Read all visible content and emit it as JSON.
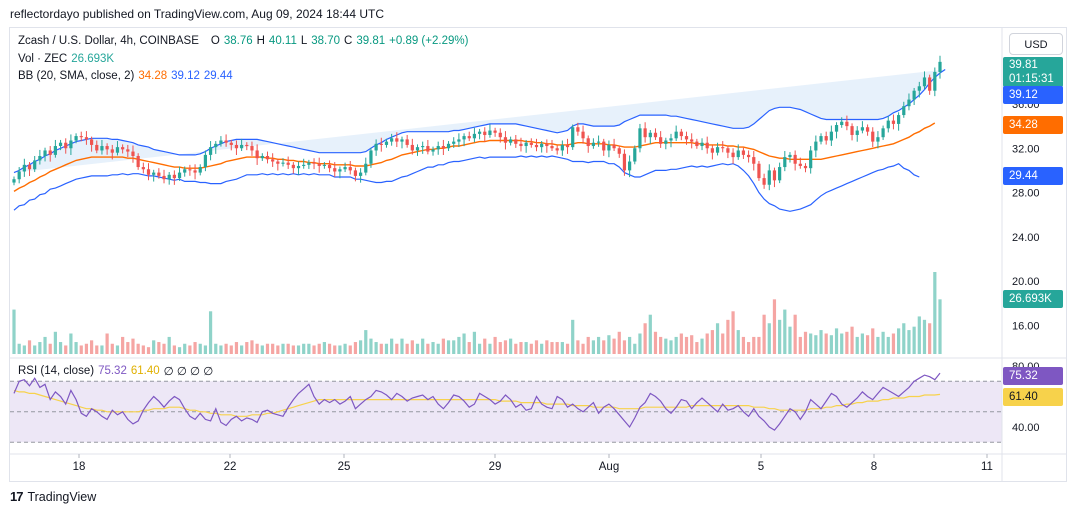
{
  "header": {
    "publisher_line": "reflectordayo published on TradingView.com, Aug 09, 2024 18:44 UTC"
  },
  "legend": {
    "symbol": "Zcash / U.S. Dollar, 4h, COINBASE",
    "o_label": "O",
    "o_value": "38.76",
    "h_label": "H",
    "h_value": "40.11",
    "l_label": "L",
    "l_value": "38.70",
    "c_label": "C",
    "c_value": "39.81",
    "change": "+0.89 (+2.29%)",
    "vol_label": "Vol · ZEC",
    "vol_value": "26.693K",
    "bb_label": "BB (20, SMA, close, 2)",
    "bb_basis": "34.28",
    "bb_upper": "39.12",
    "bb_lower": "29.44",
    "rsi_label": "RSI (14, close)",
    "rsi_value": "75.32",
    "rsi_ma": "61.40",
    "rsi_extra": "∅ ∅ ∅ ∅"
  },
  "currency_button": "USD",
  "price_tags": {
    "last_price": "39.81",
    "countdown": "01:15:31",
    "bb_upper": "39.12",
    "bb_basis": "34.28",
    "bb_lower": "29.44",
    "volume": "26.693K",
    "rsi": "75.32",
    "rsi_ma": "61.40"
  },
  "colors": {
    "up": "#26a69a",
    "down": "#ef5350",
    "vol_up": "#8fd3c9",
    "vol_down": "#f5a5a3",
    "bb_band": "#2962ff",
    "bb_basis": "#ff6d00",
    "bb_fill": "#e3effa",
    "rsi_line": "#7e57c2",
    "rsi_ma": "#f7d24b",
    "rsi_fill": "#ede7f6"
  },
  "footer": {
    "brand": "TradingView"
  },
  "chart_data": {
    "type": "candlestick",
    "price_axis": {
      "ticks": [
        "36.00",
        "32.00",
        "28.00",
        "24.00",
        "20.00",
        "16.00"
      ],
      "ticks_values": [
        36,
        32,
        28,
        24,
        20,
        16
      ]
    },
    "rsi_axis": {
      "ticks": [
        "80.00",
        "40.00"
      ],
      "ticks_values": [
        80,
        40
      ],
      "bands": [
        70,
        50,
        30
      ]
    },
    "x_axis": {
      "ticks": [
        "18",
        "22",
        "25",
        "29",
        "Aug",
        "5",
        "8",
        "11"
      ]
    },
    "close": [
      29.2,
      29.9,
      30.5,
      30.1,
      30.9,
      31.3,
      31.8,
      31.4,
      32.2,
      32.5,
      32.0,
      32.7,
      33.1,
      33.0,
      32.8,
      32.3,
      31.8,
      32.2,
      31.9,
      31.6,
      32.1,
      31.9,
      31.7,
      31.3,
      30.3,
      30.1,
      29.6,
      29.8,
      29.5,
      29.2,
      29.6,
      29.3,
      29.8,
      30.1,
      30.0,
      29.8,
      30.3,
      31.4,
      32.1,
      32.4,
      32.7,
      32.5,
      32.3,
      32.0,
      32.3,
      32.2,
      31.8,
      31.1,
      31.3,
      31.0,
      30.8,
      30.6,
      30.7,
      30.5,
      30.2,
      30.4,
      30.5,
      30.7,
      30.6,
      30.4,
      30.5,
      30.2,
      29.9,
      30.1,
      30.3,
      30.0,
      29.5,
      29.8,
      30.6,
      31.8,
      32.4,
      32.3,
      32.6,
      32.9,
      32.6,
      32.8,
      32.3,
      31.8,
      32.1,
      32.2,
      31.7,
      31.9,
      32.2,
      32.0,
      32.4,
      32.6,
      32.8,
      33.1,
      32.9,
      33.3,
      33.5,
      33.2,
      33.6,
      33.4,
      33.0,
      32.5,
      32.8,
      32.4,
      32.2,
      32.5,
      32.3,
      32.1,
      32.4,
      32.2,
      32.0,
      31.8,
      32.3,
      32.1,
      33.9,
      33.5,
      32.9,
      32.2,
      32.5,
      32.6,
      31.8,
      32.3,
      32.0,
      31.5,
      30.0,
      30.8,
      32.0,
      33.8,
      33.0,
      33.4,
      33.0,
      32.4,
      32.7,
      32.9,
      33.5,
      33.1,
      32.8,
      32.6,
      32.2,
      32.5,
      32.0,
      31.6,
      32.1,
      32.0,
      31.6,
      31.2,
      31.8,
      31.4,
      31.2,
      30.6,
      29.3,
      28.7,
      30.0,
      29.1,
      30.3,
      31.2,
      31.4,
      30.6,
      30.4,
      30.2,
      31.8,
      32.6,
      33.1,
      32.7,
      33.5,
      34.1,
      34.4,
      34.0,
      33.2,
      33.6,
      33.9,
      33.5,
      32.6,
      33.0,
      33.8,
      34.5,
      34.2,
      35.0,
      35.8,
      36.4,
      37.2,
      37.6,
      38.4,
      37.2,
      38.9,
      39.81
    ],
    "volume": [
      26,
      6,
      5,
      8,
      5,
      7,
      10,
      6,
      13,
      7,
      5,
      12,
      7,
      5,
      6,
      8,
      5,
      5,
      12,
      6,
      5,
      10,
      7,
      9,
      6,
      5,
      4,
      8,
      7,
      6,
      10,
      5,
      4,
      6,
      5,
      7,
      6,
      5,
      25,
      6,
      5,
      6,
      5,
      7,
      5,
      7,
      8,
      6,
      5,
      6,
      6,
      5,
      6,
      6,
      5,
      5,
      6,
      6,
      5,
      6,
      7,
      6,
      5,
      5,
      6,
      5,
      7,
      8,
      14,
      9,
      7,
      6,
      6,
      9,
      6,
      9,
      6,
      8,
      6,
      9,
      6,
      7,
      6,
      9,
      8,
      8,
      10,
      12,
      7,
      13,
      6,
      9,
      6,
      10,
      7,
      8,
      9,
      6,
      7,
      7,
      6,
      8,
      6,
      8,
      7,
      7,
      7,
      6,
      20,
      8,
      6,
      10,
      8,
      10,
      8,
      11,
      9,
      13,
      8,
      10,
      6,
      12,
      18,
      23,
      13,
      10,
      9,
      8,
      10,
      12,
      10,
      11,
      7,
      9,
      12,
      14,
      18,
      12,
      20,
      25,
      14,
      10,
      7,
      10,
      10,
      23,
      18,
      32,
      20,
      26,
      16,
      23,
      10,
      13,
      12,
      11,
      14,
      12,
      11,
      15,
      12,
      13,
      16,
      10,
      12,
      11,
      15,
      10,
      13,
      10,
      12,
      15,
      18,
      14,
      16,
      22,
      20,
      18,
      48,
      32
    ],
    "bb_upper": [
      29.8,
      30.0,
      30.3,
      30.5,
      30.8,
      31.0,
      31.3,
      31.5,
      31.8,
      32.0,
      32.2,
      32.4,
      32.6,
      32.7,
      32.8,
      32.9,
      32.9,
      32.9,
      32.9,
      32.8,
      32.8,
      32.7,
      32.6,
      32.5,
      32.3,
      32.2,
      32.1,
      31.9,
      31.8,
      31.7,
      31.6,
      31.5,
      31.4,
      31.4,
      31.4,
      31.4,
      31.5,
      31.7,
      32.0,
      32.2,
      32.4,
      32.6,
      32.7,
      32.8,
      32.8,
      32.8,
      32.8,
      32.8,
      32.7,
      32.6,
      32.5,
      32.4,
      32.3,
      32.2,
      32.1,
      32.0,
      31.9,
      31.8,
      31.7,
      31.6,
      31.6,
      31.6,
      31.6,
      31.6,
      31.6,
      31.6,
      31.6,
      31.6,
      31.7,
      32.0,
      32.3,
      32.5,
      32.8,
      33.0,
      33.2,
      33.4,
      33.5,
      33.5,
      33.5,
      33.5,
      33.5,
      33.5,
      33.5,
      33.5,
      33.5,
      33.6,
      33.6,
      33.7,
      33.8,
      33.9,
      34.0,
      34.1,
      34.2,
      34.2,
      34.2,
      34.2,
      34.2,
      34.2,
      34.1,
      34.0,
      33.9,
      33.8,
      33.7,
      33.6,
      33.5,
      33.4,
      33.5,
      33.6,
      34.0,
      34.2,
      34.2,
      34.1,
      34.0,
      34.0,
      34.0,
      34.0,
      34.0,
      34.1,
      34.4,
      34.6,
      34.8,
      35.0,
      35.0,
      35.0,
      35.0,
      35.0,
      35.0,
      34.9,
      34.9,
      34.8,
      34.7,
      34.6,
      34.5,
      34.4,
      34.3,
      34.2,
      34.1,
      34.0,
      33.9,
      33.8,
      33.8,
      33.8,
      33.9,
      34.2,
      34.6,
      35.0,
      35.4,
      35.6,
      35.7,
      35.7,
      35.7,
      35.6,
      35.5,
      35.3,
      35.1,
      34.9,
      34.7,
      34.6,
      34.6,
      34.6,
      34.6,
      34.6,
      34.6,
      34.6,
      34.6,
      34.6,
      34.6,
      34.6,
      34.7,
      34.9,
      35.2,
      35.4,
      35.7,
      36.0,
      36.4,
      36.8,
      37.3,
      37.9,
      38.4,
      38.8,
      39.12
    ],
    "bb_basis": [
      28.1,
      28.4,
      28.6,
      28.9,
      29.1,
      29.4,
      29.6,
      29.9,
      30.1,
      30.3,
      30.5,
      30.7,
      30.9,
      31.0,
      31.1,
      31.2,
      31.2,
      31.2,
      31.2,
      31.2,
      31.2,
      31.2,
      31.1,
      31.1,
      31.0,
      30.9,
      30.8,
      30.7,
      30.6,
      30.5,
      30.4,
      30.3,
      30.3,
      30.2,
      30.2,
      30.2,
      30.2,
      30.3,
      30.4,
      30.5,
      30.6,
      30.8,
      30.9,
      31.0,
      31.1,
      31.2,
      31.2,
      31.2,
      31.2,
      31.1,
      31.1,
      31.0,
      31.0,
      30.9,
      30.9,
      30.8,
      30.8,
      30.7,
      30.7,
      30.6,
      30.6,
      30.6,
      30.5,
      30.5,
      30.5,
      30.5,
      30.4,
      30.4,
      30.4,
      30.5,
      30.6,
      30.7,
      30.9,
      31.0,
      31.2,
      31.4,
      31.5,
      31.6,
      31.7,
      31.8,
      31.9,
      31.9,
      32.0,
      32.0,
      32.1,
      32.2,
      32.2,
      32.3,
      32.4,
      32.5,
      32.6,
      32.6,
      32.7,
      32.7,
      32.7,
      32.7,
      32.7,
      32.7,
      32.7,
      32.6,
      32.6,
      32.5,
      32.5,
      32.4,
      32.4,
      32.3,
      32.3,
      32.3,
      32.4,
      32.5,
      32.5,
      32.4,
      32.4,
      32.4,
      32.4,
      32.3,
      32.3,
      32.2,
      32.1,
      32.1,
      32.1,
      32.2,
      32.3,
      32.4,
      32.5,
      32.5,
      32.5,
      32.5,
      32.5,
      32.5,
      32.5,
      32.5,
      32.4,
      32.4,
      32.3,
      32.3,
      32.3,
      32.3,
      32.2,
      32.2,
      32.1,
      32.1,
      32.0,
      31.9,
      31.7,
      31.5,
      31.3,
      31.2,
      31.1,
      31.1,
      31.0,
      31.0,
      31.0,
      31.0,
      31.0,
      31.0,
      31.0,
      31.1,
      31.2,
      31.3,
      31.4,
      31.5,
      31.6,
      31.7,
      31.8,
      31.9,
      32.0,
      32.1,
      32.2,
      32.3,
      32.4,
      32.6,
      32.8,
      33.0,
      33.3,
      33.5,
      33.8,
      34.0,
      34.28
    ],
    "bb_lower": [
      26.4,
      26.8,
      26.9,
      27.3,
      27.4,
      27.8,
      27.9,
      28.3,
      28.4,
      28.6,
      28.8,
      29.0,
      29.2,
      29.3,
      29.4,
      29.5,
      29.5,
      29.5,
      29.5,
      29.6,
      29.6,
      29.7,
      29.6,
      29.7,
      29.7,
      29.6,
      29.5,
      29.5,
      29.4,
      29.3,
      29.2,
      29.1,
      29.2,
      29.0,
      29.0,
      29.0,
      28.9,
      28.9,
      28.8,
      28.8,
      28.8,
      29.0,
      29.1,
      29.2,
      29.4,
      29.6,
      29.6,
      29.6,
      29.7,
      29.6,
      29.7,
      29.6,
      29.7,
      29.6,
      29.7,
      29.6,
      29.7,
      29.6,
      29.7,
      29.6,
      29.6,
      29.6,
      29.4,
      29.4,
      29.4,
      29.4,
      29.2,
      29.2,
      29.1,
      29.0,
      28.9,
      28.9,
      29.0,
      29.0,
      29.2,
      29.4,
      29.5,
      29.7,
      29.9,
      30.1,
      30.3,
      30.3,
      30.5,
      30.5,
      30.7,
      30.8,
      30.8,
      30.9,
      31.0,
      31.1,
      31.2,
      31.1,
      31.2,
      31.2,
      31.2,
      31.2,
      31.2,
      31.2,
      31.3,
      31.2,
      31.3,
      31.2,
      31.3,
      31.2,
      31.3,
      31.2,
      31.1,
      31.0,
      30.8,
      30.8,
      30.8,
      30.7,
      30.8,
      30.8,
      30.8,
      30.6,
      30.6,
      30.3,
      29.8,
      29.6,
      29.4,
      29.4,
      29.6,
      29.8,
      30.0,
      30.0,
      30.0,
      30.1,
      30.1,
      30.2,
      30.3,
      30.4,
      30.3,
      30.4,
      30.3,
      30.4,
      30.5,
      30.6,
      30.5,
      30.6,
      30.4,
      30.0,
      29.5,
      28.8,
      28.0,
      27.4,
      27.0,
      26.8,
      26.5,
      26.4,
      26.3,
      26.4,
      26.5,
      26.7,
      26.9,
      27.3,
      27.7,
      28.0,
      28.2,
      28.4,
      28.6,
      28.8,
      29.0,
      29.2,
      29.4,
      29.6,
      29.8,
      30.0,
      30.1,
      30.3,
      30.4,
      30.6,
      30.2,
      30.0,
      29.6,
      29.4
    ],
    "rsi": [
      62,
      70,
      71,
      67,
      72,
      66,
      68,
      58,
      63,
      60,
      55,
      64,
      58,
      49,
      47,
      52,
      50,
      47,
      45,
      51,
      48,
      50,
      45,
      42,
      44,
      51,
      56,
      60,
      57,
      53,
      57,
      60,
      58,
      52,
      47,
      45,
      49,
      45,
      44,
      52,
      43,
      41,
      45,
      47,
      44,
      46,
      45,
      43,
      50,
      51,
      49,
      48,
      47,
      53,
      58,
      62,
      65,
      68,
      60,
      55,
      58,
      56,
      58,
      55,
      57,
      60,
      52,
      55,
      58,
      60,
      64,
      63,
      61,
      58,
      62,
      60,
      57,
      59,
      60,
      61,
      58,
      60,
      55,
      52,
      56,
      61,
      60,
      57,
      53,
      55,
      62,
      60,
      58,
      55,
      57,
      61,
      58,
      53,
      55,
      51,
      52,
      60,
      55,
      53,
      52,
      60,
      58,
      53,
      55,
      52,
      50,
      53,
      56,
      49,
      53,
      55,
      52,
      48,
      44,
      40,
      46,
      53,
      56,
      62,
      60,
      57,
      52,
      49,
      53,
      58,
      57,
      52,
      56,
      59,
      56,
      53,
      50,
      55,
      51,
      52,
      54,
      50,
      47,
      52,
      47,
      44,
      40,
      38,
      42,
      47,
      52,
      50,
      45,
      50,
      58,
      55,
      52,
      57,
      62,
      60,
      55,
      53,
      56,
      59,
      63,
      60,
      58,
      62,
      66,
      64,
      62,
      60,
      63,
      66,
      70,
      72,
      74,
      73,
      71,
      75.32
    ],
    "rsi_ma": [
      64,
      63,
      63,
      62,
      62,
      61,
      60,
      59,
      58,
      57,
      56,
      55,
      54,
      53,
      52,
      52,
      51,
      51,
      50,
      50,
      50,
      50,
      50,
      50,
      50,
      51,
      51,
      52,
      52,
      52,
      53,
      53,
      53,
      52,
      51,
      51,
      50,
      50,
      49,
      49,
      48,
      48,
      48,
      47,
      47,
      47,
      48,
      48,
      48,
      49,
      49,
      50,
      51,
      52,
      53,
      54,
      55,
      56,
      57,
      58,
      58,
      58,
      58,
      58,
      58,
      58,
      58,
      58,
      58,
      58,
      58,
      58,
      58,
      58,
      58,
      58,
      58,
      58,
      58,
      58,
      58,
      58,
      58,
      58,
      58,
      58,
      58,
      58,
      58,
      58,
      58,
      58,
      58,
      58,
      57,
      57,
      57,
      57,
      56,
      56,
      56,
      56,
      56,
      55,
      55,
      55,
      55,
      55,
      54,
      54,
      54,
      54,
      53,
      53,
      53,
      53,
      53,
      52,
      52,
      52,
      52,
      52,
      53,
      53,
      53,
      53,
      53,
      53,
      53,
      53,
      53,
      54,
      54,
      54,
      54,
      54,
      54,
      54,
      54,
      54,
      54,
      54,
      54,
      53,
      53,
      53,
      52,
      52,
      51,
      51,
      51,
      51,
      51,
      51,
      52,
      52,
      52,
      53,
      53,
      54,
      54,
      55,
      55,
      56,
      56,
      57,
      57,
      57,
      58,
      58,
      59,
      59,
      59,
      60,
      60,
      60,
      61,
      61,
      61,
      61.4
    ]
  }
}
